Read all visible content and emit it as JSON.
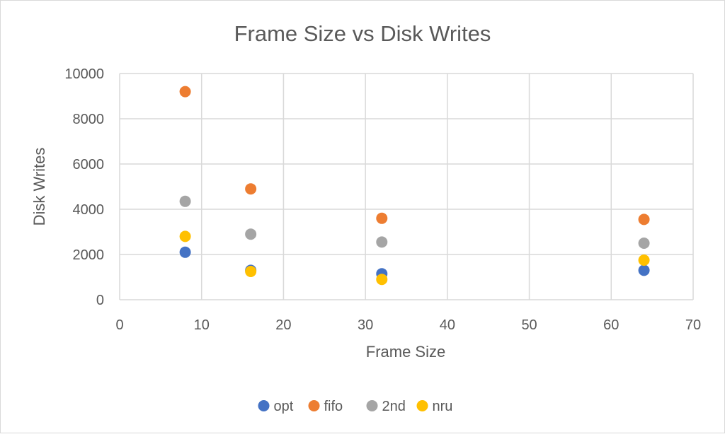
{
  "chart_data": {
    "type": "scatter",
    "title": "Frame Size vs Disk Writes",
    "xlabel": "Frame Size",
    "ylabel": "Disk Writes",
    "xlim": [
      0,
      70
    ],
    "ylim": [
      0,
      10000
    ],
    "xticks": [
      0,
      10,
      20,
      30,
      40,
      50,
      60,
      70
    ],
    "yticks": [
      0,
      2000,
      4000,
      6000,
      8000,
      10000
    ],
    "grid": true,
    "legend_position": "bottom",
    "x": [
      8,
      16,
      32,
      64
    ],
    "series": [
      {
        "name": "opt",
        "color": "#4472c4",
        "values": [
          2100,
          1300,
          1150,
          1300
        ]
      },
      {
        "name": "fifo",
        "color": "#ed7d31",
        "values": [
          9200,
          4900,
          3600,
          3550
        ]
      },
      {
        "name": "2nd",
        "color": "#a5a5a5",
        "values": [
          4350,
          2900,
          2550,
          2500
        ]
      },
      {
        "name": "nru",
        "color": "#ffc000",
        "values": [
          2800,
          1250,
          900,
          1750
        ]
      }
    ]
  }
}
